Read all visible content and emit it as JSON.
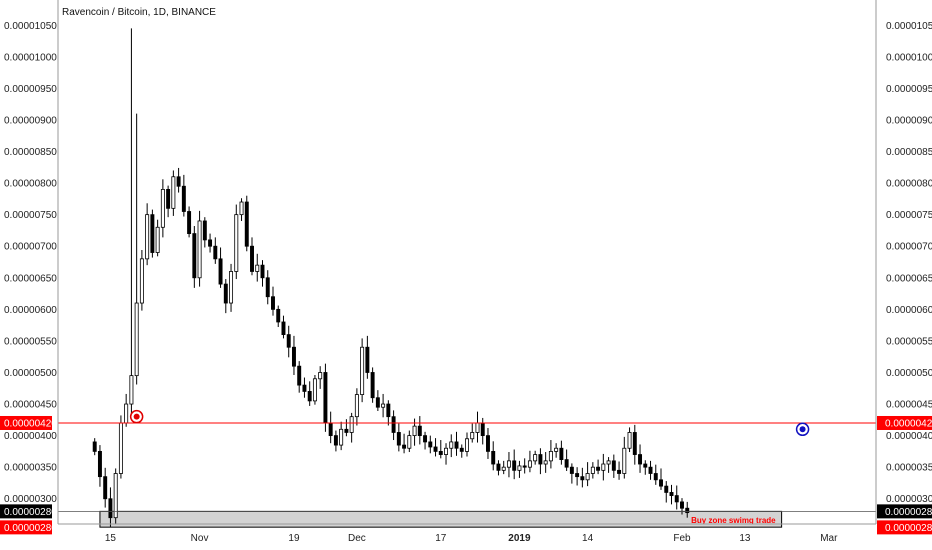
{
  "header": {
    "title": "Ravencoin / Bitcoin, 1D, BINANCE"
  },
  "colors": {
    "line": "#ff0000",
    "badge_red": "#ff0000",
    "badge_black": "#000000",
    "candle": "#000000",
    "zone_fill": "#d3d3d3",
    "marker_red": "#e00000",
    "marker_blue": "#1010c0"
  },
  "icons": {
    "marker_left": "circled-target-icon",
    "marker_right": "circled-target-icon"
  },
  "chart_data": {
    "type": "candlestick",
    "title": "Ravencoin / Bitcoin, 1D, BINANCE",
    "ylim": [
      2.6e-06,
      1.09e-05
    ],
    "y_ticks": [
      "0.00001050",
      "0.00001000",
      "0.00000950",
      "0.00000900",
      "0.00000850",
      "0.00000800",
      "0.00000750",
      "0.00000700",
      "0.00000650",
      "0.00000600",
      "0.00000550",
      "0.00000500",
      "0.00000450",
      "0.00000400",
      "0.00000350",
      "0.00000300"
    ],
    "x_ticks": [
      {
        "label": "15",
        "date": "2018-10-15"
      },
      {
        "label": "Nov",
        "date": "2018-11-01"
      },
      {
        "label": "19",
        "date": "2018-11-19"
      },
      {
        "label": "Dec",
        "date": "2018-12-01"
      },
      {
        "label": "17",
        "date": "2018-12-17"
      },
      {
        "label": "2019",
        "date": "2019-01-01"
      },
      {
        "label": "14",
        "date": "2019-01-14"
      },
      {
        "label": "Feb",
        "date": "2019-02-01"
      },
      {
        "label": "13",
        "date": "2019-02-13"
      },
      {
        "label": "Mar",
        "date": "2019-03-01"
      }
    ],
    "resistance": {
      "value": 4.2e-06,
      "label": "0.00000420"
    },
    "last_price": {
      "value": 2.8e-06,
      "label": "0.00000280"
    },
    "support_label": "0.00000280",
    "buy_zone": {
      "top": 2.8e-06,
      "bottom": 2.55e-06,
      "label": "Buy zone swimg trade",
      "start": "2018-10-13",
      "end": "2019-02-20"
    },
    "markers": [
      {
        "date": "2018-10-20",
        "value": 4.3e-06,
        "color": "#e00000"
      },
      {
        "date": "2019-02-24",
        "value": 4.1e-06,
        "color": "#1010c0"
      }
    ],
    "start_date": "2018-10-12",
    "closes": [
      3.75,
      3.35,
      3.0,
      2.7,
      3.4,
      4.2,
      4.5,
      4.95,
      6.1,
      6.8,
      7.5,
      6.9,
      7.3,
      7.9,
      7.6,
      8.1,
      7.95,
      7.55,
      7.2,
      6.5,
      7.4,
      7.1,
      7.0,
      6.8,
      6.4,
      6.1,
      6.6,
      7.5,
      7.7,
      7.0,
      6.6,
      6.7,
      6.5,
      6.2,
      6.0,
      5.8,
      5.6,
      5.4,
      5.1,
      4.8,
      4.7,
      4.55,
      4.9,
      5.0,
      4.2,
      4.0,
      3.85,
      4.1,
      4.05,
      4.3,
      4.65,
      5.4,
      5.0,
      4.6,
      4.45,
      4.5,
      4.3,
      4.05,
      3.85,
      3.8,
      4.0,
      4.15,
      4.0,
      3.9,
      3.82,
      3.75,
      3.7,
      3.8,
      3.9,
      3.8,
      3.75,
      3.95,
      4.05,
      4.2,
      4.0,
      3.75,
      3.55,
      3.45,
      3.5,
      3.6,
      3.45,
      3.52,
      3.5,
      3.6,
      3.7,
      3.55,
      3.6,
      3.75,
      3.8,
      3.62,
      3.5,
      3.4,
      3.35,
      3.3,
      3.4,
      3.5,
      3.45,
      3.55,
      3.6,
      3.45,
      3.4,
      3.8,
      4.05,
      3.7,
      3.55,
      3.5,
      3.4,
      3.3,
      3.2,
      3.1,
      3.05,
      2.95,
      2.85,
      2.78
    ]
  }
}
